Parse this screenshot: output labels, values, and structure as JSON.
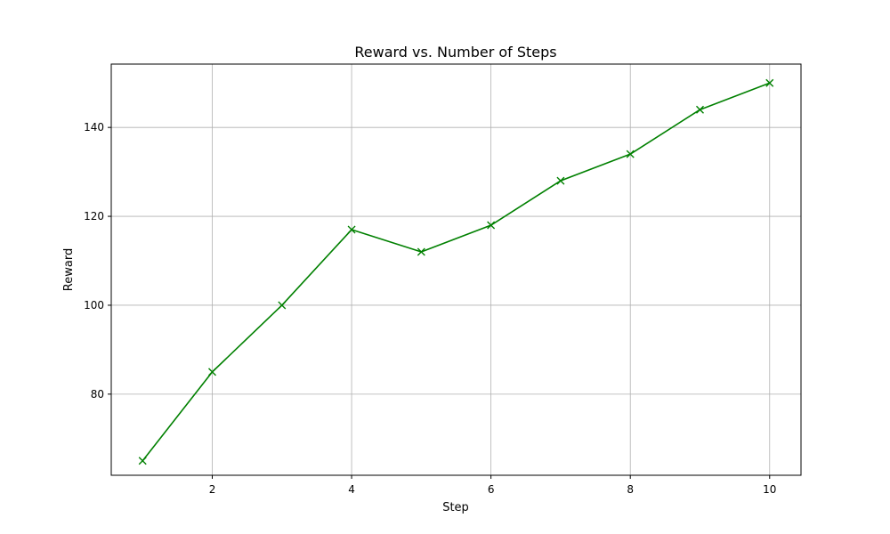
{
  "chart_data": {
    "type": "line",
    "title": "Reward vs. Number of Steps",
    "xlabel": "Step",
    "ylabel": "Reward",
    "xlim": [
      0.55,
      10.45
    ],
    "ylim": [
      61.75,
      154.25
    ],
    "xticks": [
      2,
      4,
      6,
      8,
      10
    ],
    "yticks": [
      80,
      100,
      120,
      140
    ],
    "grid": true,
    "series": [
      {
        "color": "#008000",
        "marker": "x",
        "x": [
          1,
          2,
          3,
          4,
          5,
          6,
          7,
          8,
          9,
          10
        ],
        "y": [
          65,
          85,
          100,
          117,
          112,
          118,
          128,
          134,
          144,
          150
        ]
      }
    ]
  }
}
